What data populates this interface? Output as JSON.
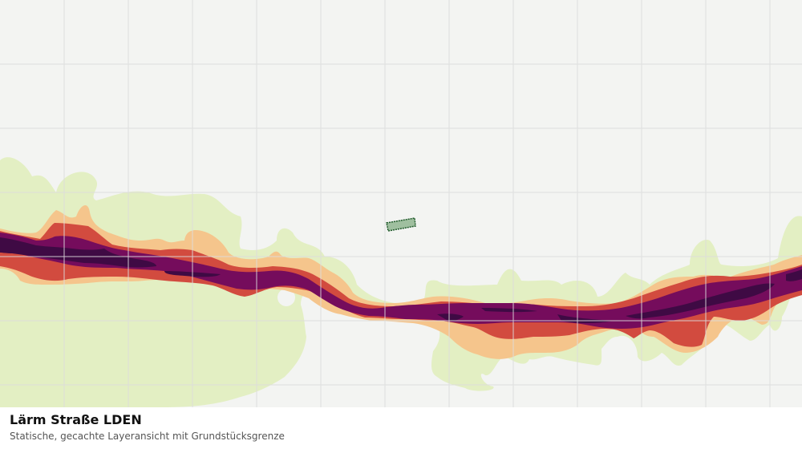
{
  "caption": {
    "title": "Lärm Straße LDEN",
    "subtitle": "Statische, gecachte Layeransicht mit Grundstücksgrenze"
  },
  "map": {
    "layer": "noise-road-lden",
    "background_color": "#f3f4f2",
    "grid_color": "#dcdcdc",
    "noise_bands": [
      {
        "name": "band-1",
        "color": "#e3efc3"
      },
      {
        "name": "band-2",
        "color": "#f5c58c"
      },
      {
        "name": "band-3",
        "color": "#d24b3f"
      },
      {
        "name": "band-4",
        "color": "#750c5c"
      },
      {
        "name": "band-5",
        "color": "#3f0a44"
      }
    ],
    "parcel": {
      "fill": "#9fbf9f",
      "stroke": "#1f5a2a"
    }
  }
}
